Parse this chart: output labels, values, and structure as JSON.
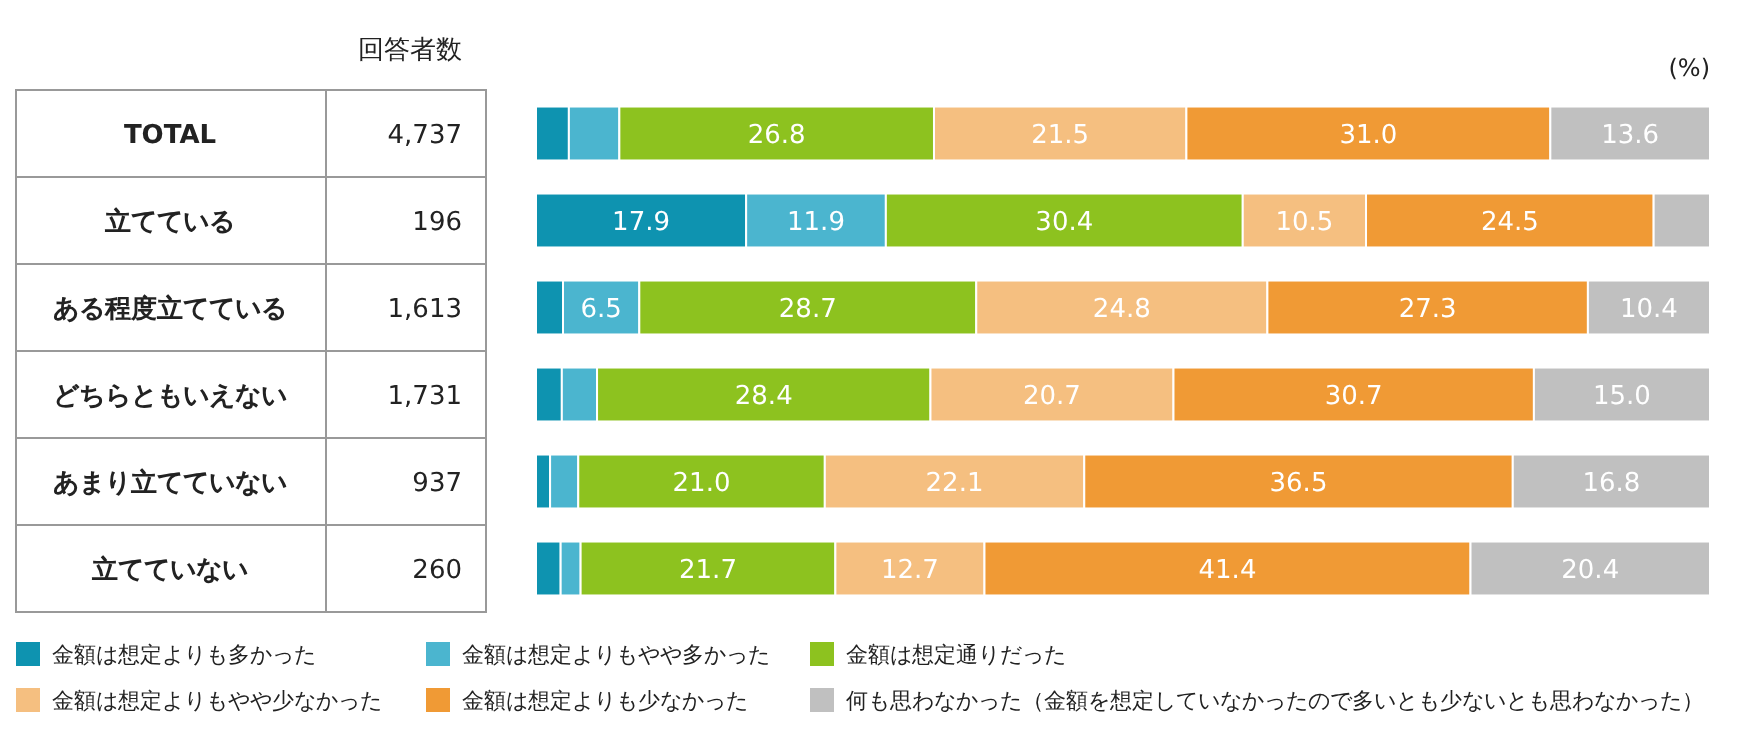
{
  "chart_data": {
    "type": "bar",
    "orientation": "horizontal",
    "stacked": true,
    "xlabel": "(%)",
    "xlim": [
      0,
      100
    ],
    "legend": "bottom",
    "categories": [
      "TOTAL",
      "立てている",
      "ある程度立てている",
      "どちらともいえない",
      "あまり立てていない",
      "立てていない"
    ],
    "annotations": [
      "回答者数",
      "4,737",
      "196",
      "1,613",
      "1,731",
      "937",
      "260"
    ],
    "series": [
      {
        "name": "金額は想定よりも多かった",
        "color": "#0e93b0",
        "values": [
          2.8,
          17.9,
          2.3,
          2.2,
          1.2,
          2.1
        ],
        "value_labels": [
          null,
          "17.9",
          null,
          null,
          null,
          null
        ]
      },
      {
        "name": "金額は想定よりもやや多かった",
        "color": "#4bb5cf",
        "values": [
          4.3,
          11.9,
          6.5,
          3.0,
          2.4,
          1.7
        ],
        "value_labels": [
          null,
          "11.9",
          "6.5",
          null,
          null,
          null
        ]
      },
      {
        "name": "金額は想定通りだった",
        "color": "#8dc21f",
        "values": [
          26.8,
          30.4,
          28.7,
          28.4,
          21.0,
          21.7
        ],
        "value_labels": [
          "26.8",
          "30.4",
          "28.7",
          "28.4",
          "21.0",
          "21.7"
        ]
      },
      {
        "name": "金額は想定よりもやや少なかった",
        "color": "#f5bf80",
        "values": [
          21.5,
          10.5,
          24.8,
          20.7,
          22.1,
          12.7
        ],
        "value_labels": [
          "21.5",
          "10.5",
          "24.8",
          "20.7",
          "22.1",
          "12.7"
        ]
      },
      {
        "name": "金額は想定よりも少なかった",
        "color": "#f09a35",
        "values": [
          31.0,
          24.5,
          27.3,
          30.7,
          36.5,
          41.4
        ],
        "value_labels": [
          "31.0",
          "24.5",
          "27.3",
          "30.7",
          "36.5",
          "41.4"
        ]
      },
      {
        "name": "何も思わなかった（金額を想定していなかったので多いとも少ないとも思わなかった）",
        "color": "#c0c0c0",
        "values": [
          13.6,
          4.8,
          10.4,
          15.0,
          16.8,
          20.4
        ],
        "value_labels": [
          "13.6",
          null,
          "10.4",
          "15.0",
          "16.8",
          "20.4"
        ]
      }
    ]
  }
}
